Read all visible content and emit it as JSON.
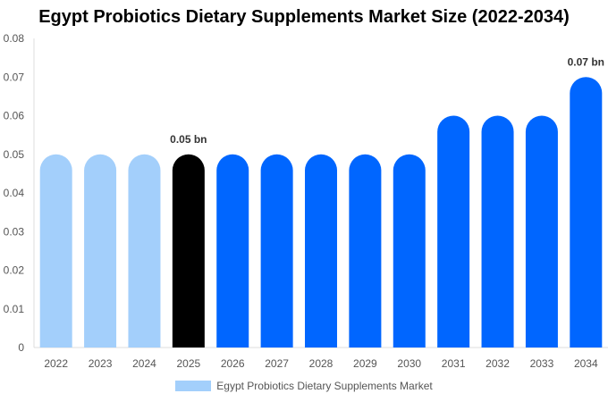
{
  "chart_data": {
    "type": "bar",
    "title": "Egypt Probiotics Dietary Supplements Market Size (2022-2034)",
    "categories": [
      "2022",
      "2023",
      "2024",
      "2025",
      "2026",
      "2027",
      "2028",
      "2029",
      "2030",
      "2031",
      "2032",
      "2033",
      "2034"
    ],
    "series": [
      {
        "name": "Egypt Probiotics Dietary Supplements Market",
        "values": [
          0.05,
          0.05,
          0.05,
          0.05,
          0.05,
          0.05,
          0.05,
          0.05,
          0.05,
          0.06,
          0.06,
          0.06,
          0.07
        ]
      }
    ],
    "bar_colors": [
      "#a3cffb",
      "#a3cffb",
      "#a3cffb",
      "#000000",
      "#0066ff",
      "#0066ff",
      "#0066ff",
      "#0066ff",
      "#0066ff",
      "#0066ff",
      "#0066ff",
      "#0066ff",
      "#0066ff"
    ],
    "data_labels": {
      "2025": "0.05 bn",
      "2034": "0.07 bn"
    },
    "y_ticks": [
      "0",
      "0.01",
      "0.02",
      "0.03",
      "0.04",
      "0.05",
      "0.06",
      "0.07",
      "0.08"
    ],
    "ylim": [
      0,
      0.08
    ],
    "legend_color": "#a3cffb",
    "legend_position": "bottom",
    "grid": false
  }
}
